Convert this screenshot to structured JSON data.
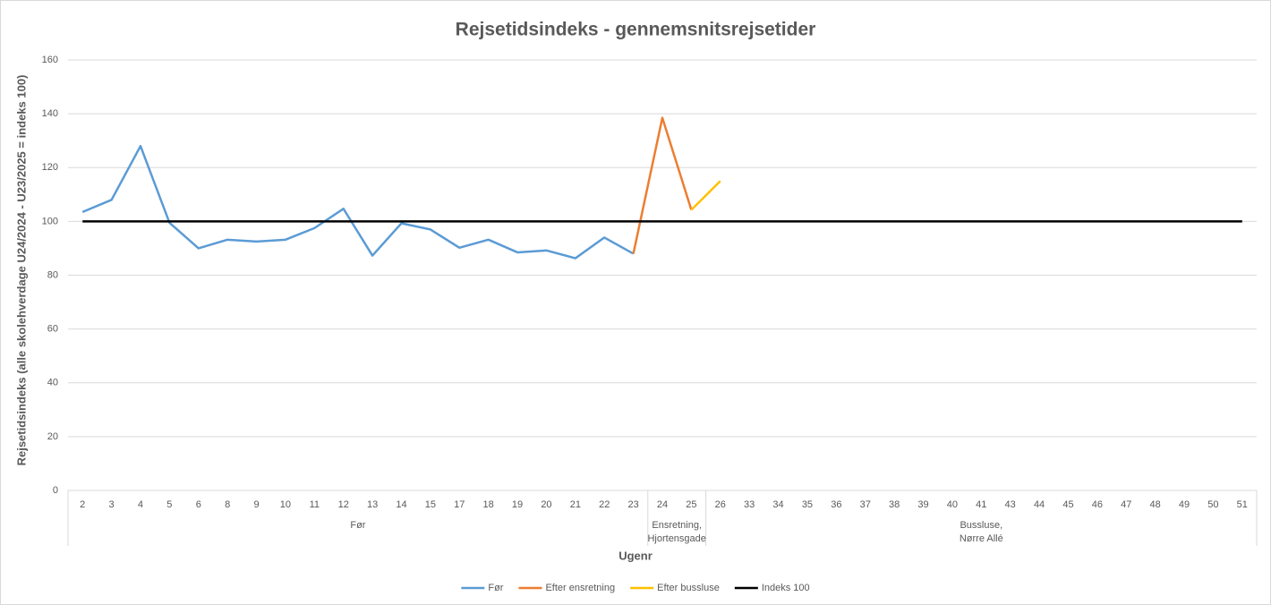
{
  "chart_data": {
    "type": "line",
    "title": "Rejsetidsindeks - gennemsnitsrejsetider",
    "x_label": "Ugenr",
    "y_label": "Rejsetidsindeks (alle skolehverdage U24/2024 - U23/2025 = indeks 100)",
    "groups": [
      {
        "lines": [
          "Før"
        ],
        "categories": [
          "2",
          "3",
          "4",
          "5",
          "6",
          "8",
          "9",
          "10",
          "11",
          "12",
          "13",
          "14",
          "15",
          "17",
          "18",
          "19",
          "20",
          "21",
          "22",
          "23"
        ]
      },
      {
        "lines": [
          "Ensretning,",
          "Hjortensgade"
        ],
        "categories": [
          "24",
          "25"
        ]
      },
      {
        "lines": [
          "Bussluse,",
          "Nørre Allé"
        ],
        "categories": [
          "26",
          "33",
          "34",
          "35",
          "36",
          "37",
          "38",
          "39",
          "40",
          "41",
          "43",
          "44",
          "45",
          "46",
          "47",
          "48",
          "49",
          "50",
          "51"
        ]
      }
    ],
    "ylim": [
      0,
      160
    ],
    "yticks": [
      0,
      20,
      40,
      60,
      80,
      100,
      120,
      140,
      160
    ],
    "grid": true,
    "legend": "bottom",
    "series": [
      {
        "name": "Før",
        "color": "#5b9bd5",
        "values": [
          103.5,
          108,
          128,
          99.5,
          90,
          93.2,
          92.5,
          93.2,
          97.5,
          104.7,
          87.3,
          99.3,
          97,
          90.2,
          93.2,
          88.5,
          89.2,
          86.3,
          94,
          88,
          null,
          null,
          null,
          null,
          null,
          null,
          null,
          null,
          null,
          null,
          null,
          null,
          null,
          null,
          null,
          null,
          null,
          null,
          null,
          null,
          null
        ]
      },
      {
        "name": "Efter ensretning",
        "color": "#ed7d31",
        "values": [
          null,
          null,
          null,
          null,
          null,
          null,
          null,
          null,
          null,
          null,
          null,
          null,
          null,
          null,
          null,
          null,
          null,
          null,
          null,
          88,
          138.5,
          104.3,
          null,
          null,
          null,
          null,
          null,
          null,
          null,
          null,
          null,
          null,
          null,
          null,
          null,
          null,
          null,
          null,
          null,
          null,
          null
        ]
      },
      {
        "name": "Efter bussluse",
        "color": "#ffc000",
        "values": [
          null,
          null,
          null,
          null,
          null,
          null,
          null,
          null,
          null,
          null,
          null,
          null,
          null,
          null,
          null,
          null,
          null,
          null,
          null,
          null,
          null,
          104.3,
          115,
          null,
          null,
          null,
          null,
          null,
          null,
          null,
          null,
          null,
          null,
          null,
          null,
          null,
          null,
          null,
          null,
          null,
          null
        ]
      },
      {
        "name": "Indeks 100",
        "color": "#000000",
        "values": [
          100,
          100,
          100,
          100,
          100,
          100,
          100,
          100,
          100,
          100,
          100,
          100,
          100,
          100,
          100,
          100,
          100,
          100,
          100,
          100,
          100,
          100,
          100,
          100,
          100,
          100,
          100,
          100,
          100,
          100,
          100,
          100,
          100,
          100,
          100,
          100,
          100,
          100,
          100,
          100,
          100
        ]
      }
    ]
  }
}
